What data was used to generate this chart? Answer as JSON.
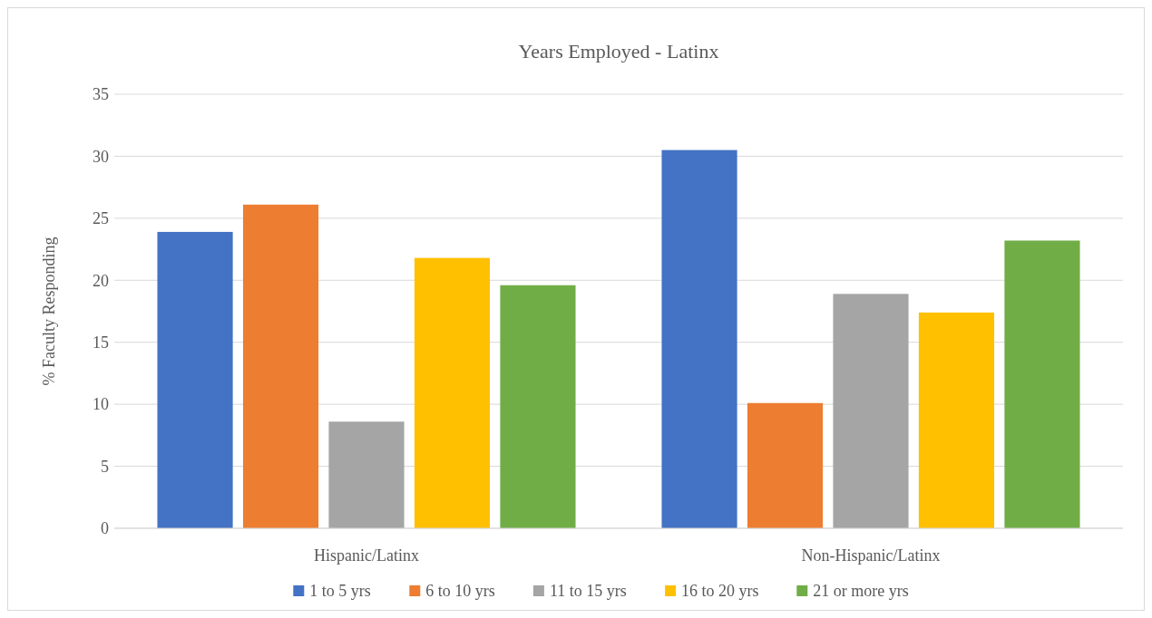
{
  "chart_data": {
    "type": "bar",
    "title": "Years Employed - Latinx",
    "ylabel": "% Faculty Responding",
    "categories": [
      "Hispanic/Latinx",
      "Non-Hispanic/Latinx"
    ],
    "series": [
      {
        "name": "1 to 5 yrs",
        "color": "#4472c4",
        "values": [
          23.9,
          30.5
        ]
      },
      {
        "name": "6 to 10 yrs",
        "color": "#ed7d31",
        "values": [
          26.1,
          10.1
        ]
      },
      {
        "name": "11 to 15 yrs",
        "color": "#a5a5a5",
        "values": [
          8.6,
          18.9
        ]
      },
      {
        "name": "16 to 20 yrs",
        "color": "#ffc000",
        "values": [
          21.8,
          17.4
        ]
      },
      {
        "name": "21 or more yrs",
        "color": "#70ad47",
        "values": [
          19.6,
          23.2
        ]
      }
    ],
    "ylim": [
      0,
      35
    ],
    "yticks": [
      0,
      5,
      10,
      15,
      20,
      25,
      30,
      35
    ],
    "grid": "y",
    "legend": "bottom"
  }
}
